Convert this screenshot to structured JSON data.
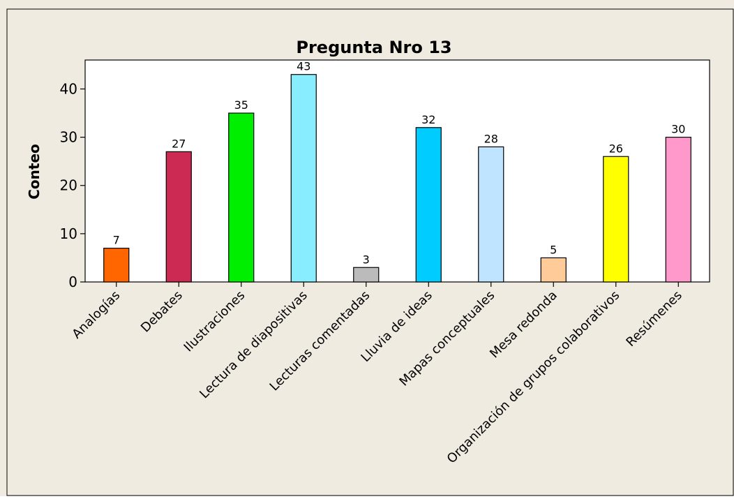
{
  "chart_data": {
    "type": "bar",
    "title": "Pregunta Nro 13",
    "xlabel": "",
    "ylabel": "Conteo",
    "ylim": [
      0,
      46
    ],
    "yticks": [
      0,
      10,
      20,
      30,
      40
    ],
    "grid": false,
    "legend": "none",
    "categories": [
      "Analogías",
      "Debates",
      "Ilustraciones",
      "Lectura de diapositivas",
      "Lecturas comentadas",
      "Lluvia de ideas",
      "Mapas conceptuales",
      "Mesa redonda",
      "Organización de grupos colaborativos",
      "Resúmenes"
    ],
    "values": [
      7,
      27,
      35,
      43,
      3,
      32,
      28,
      5,
      26,
      30
    ],
    "colors": [
      "#ff6600",
      "#cc2a52",
      "#00ee00",
      "#88eeff",
      "#bbbbbb",
      "#00ccff",
      "#bfe4ff",
      "#ffcc99",
      "#ffff00",
      "#ff99cc"
    ],
    "background": "#f0ebe1",
    "plot_background": "#ffffff"
  }
}
